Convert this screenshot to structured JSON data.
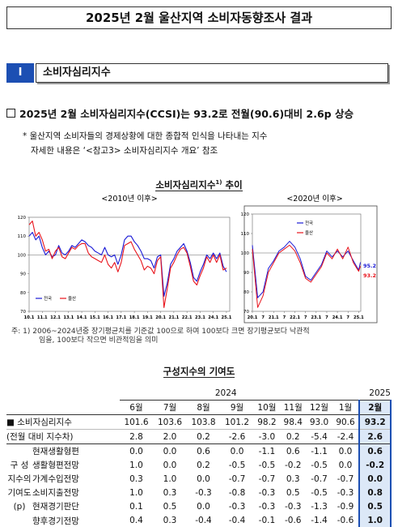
{
  "header": {
    "title": "2025년 2월 울산지역 소비자동향조사 결과"
  },
  "section": {
    "number": "I",
    "title": "소비자심리지수"
  },
  "headline": "2025년 2월 소비자심리지수(CCSI)는 93.2로 전월(90.6)대비 2.6p 상승",
  "notes": [
    "* 울산지역 소비자들의 경제상황에 대한 종합적 인식을 나타내는 지수",
    "자세한 내용은 ‘<참고3> 소비자심리지수 개요’ 참조"
  ],
  "figure": {
    "title": "소비자심리지수",
    "title_sup": "1)",
    "title_end": " 추이",
    "footnote": [
      "주: 1) 2006~2024년중 장기평균치를 기준값 100으로 하여 100보다 크면 장기평균보다 낙관적",
      "임을, 100보다 작으면 비관적임을 의미"
    ]
  },
  "chart_data": [
    {
      "type": "line",
      "subtitle": "<2010년 이후>",
      "legend": "lower left",
      "hline": 100,
      "x": [
        2010,
        2010.25,
        2010.5,
        2010.75,
        2011,
        2011.25,
        2011.5,
        2011.75,
        2012,
        2012.25,
        2012.5,
        2012.75,
        2013,
        2013.25,
        2013.5,
        2013.75,
        2014,
        2014.25,
        2014.5,
        2014.75,
        2015,
        2015.25,
        2015.5,
        2015.75,
        2016,
        2016.25,
        2016.5,
        2016.75,
        2017,
        2017.25,
        2017.5,
        2017.75,
        2018,
        2018.25,
        2018.5,
        2018.75,
        2019,
        2019.25,
        2019.5,
        2019.75,
        2020,
        2020.25,
        2020.5,
        2020.75,
        2021,
        2021.25,
        2021.5,
        2021.75,
        2022,
        2022.25,
        2022.5,
        2022.75,
        2023,
        2023.25,
        2023.5,
        2023.75,
        2024,
        2024.25,
        2024.5,
        2024.75,
        2025
      ],
      "xlim": [
        2010,
        2025.25
      ],
      "xticks": [
        {
          "value": 2010,
          "label": "10.1"
        },
        {
          "value": 2011,
          "label": "11.1"
        },
        {
          "value": 2012,
          "label": "12.1"
        },
        {
          "value": 2013,
          "label": "13.1"
        },
        {
          "value": 2014,
          "label": "14.1"
        },
        {
          "value": 2015,
          "label": "15.1"
        },
        {
          "value": 2016,
          "label": "16.1"
        },
        {
          "value": 2017,
          "label": "17.1"
        },
        {
          "value": 2018,
          "label": "18.1"
        },
        {
          "value": 2019,
          "label": "19.1"
        },
        {
          "value": 2020,
          "label": "20.1"
        },
        {
          "value": 2021,
          "label": "21.1"
        },
        {
          "value": 2022,
          "label": "22.1"
        },
        {
          "value": 2023,
          "label": "23.1"
        },
        {
          "value": 2024,
          "label": "24.1"
        },
        {
          "value": 2025,
          "label": "25.1"
        }
      ],
      "ylim": [
        70,
        120
      ],
      "yticks": [
        70,
        80,
        90,
        100,
        110,
        120
      ],
      "series": [
        {
          "name": "전국",
          "color": "#1a1ad6",
          "values": [
            110,
            112,
            108,
            110,
            104,
            100,
            102,
            99,
            100,
            105,
            101,
            100,
            102,
            105,
            104,
            106,
            108,
            107,
            105,
            104,
            102,
            101,
            100,
            104,
            100,
            99,
            100,
            95,
            100,
            108,
            110,
            110,
            107,
            105,
            102,
            98,
            98,
            97,
            93,
            99,
            100,
            78,
            85,
            95,
            98,
            102,
            104,
            106,
            102,
            96,
            88,
            86,
            91,
            95,
            100,
            98,
            101,
            98,
            101,
            94,
            91
          ]
        },
        {
          "name": "울산",
          "color": "#e8131b",
          "values": [
            116,
            118,
            110,
            112,
            108,
            102,
            103,
            98,
            102,
            104,
            99,
            98,
            101,
            104,
            103,
            105,
            106,
            106,
            101,
            99,
            98,
            97,
            96,
            100,
            95,
            93,
            96,
            91,
            96,
            105,
            106,
            107,
            103,
            100,
            97,
            92,
            94,
            93,
            90,
            97,
            99,
            72,
            82,
            93,
            96,
            100,
            103,
            104,
            101,
            94,
            86,
            84,
            89,
            93,
            99,
            96,
            100,
            96,
            100,
            92,
            93
          ]
        }
      ]
    },
    {
      "type": "line",
      "subtitle": "<2020년 이후>",
      "legend": "upper center",
      "hline": 100,
      "label_last": true,
      "x": [
        2020,
        2020.25,
        2020.5,
        2020.75,
        2021,
        2021.25,
        2021.5,
        2021.75,
        2022,
        2022.25,
        2022.5,
        2022.75,
        2023,
        2023.25,
        2023.5,
        2023.75,
        2024,
        2024.25,
        2024.5,
        2024.75,
        2025,
        2025.083
      ],
      "xlim": [
        2020,
        2025.1
      ],
      "xticks": [
        {
          "value": 2020,
          "label": "20.1"
        },
        {
          "value": 2020.5,
          "label": "7"
        },
        {
          "value": 2021,
          "label": "21.1"
        },
        {
          "value": 2021.5,
          "label": "7"
        },
        {
          "value": 2022,
          "label": "22.1"
        },
        {
          "value": 2022.5,
          "label": "7"
        },
        {
          "value": 2023,
          "label": "23.1"
        },
        {
          "value": 2023.5,
          "label": "7"
        },
        {
          "value": 2024,
          "label": "24.1"
        },
        {
          "value": 2024.5,
          "label": "7"
        },
        {
          "value": 2025,
          "label": "25.1"
        }
      ],
      "ylim": [
        70,
        120
      ],
      "yticks": [
        70,
        80,
        90,
        100,
        110,
        120
      ],
      "series": [
        {
          "name": "전국",
          "color": "#1a1ad6",
          "values": [
            104,
            77,
            80,
            92,
            96,
            101,
            103,
            106,
            103,
            97,
            88,
            86,
            90,
            94,
            101,
            98,
            101,
            98,
            101,
            96,
            91.2,
            95.2
          ]
        },
        {
          "name": "울산",
          "color": "#e8131b",
          "values": [
            102,
            72,
            78,
            90,
            95,
            100,
            102,
            104,
            101,
            95,
            87,
            85,
            89,
            93,
            100,
            97,
            102,
            97,
            103,
            95,
            90.6,
            93.2
          ]
        }
      ]
    }
  ],
  "table": {
    "title": "구성지수의 기여도",
    "years": [
      [
        "2024",
        7
      ],
      [
        "2025",
        2
      ]
    ],
    "months": [
      "6월",
      "7월",
      "8월",
      "9월",
      "10월",
      "11월",
      "12월",
      "1월",
      "2월"
    ],
    "main_rows": [
      {
        "label": "■ 소비자심리지수",
        "cells": [
          "101.6",
          "103.6",
          "103.8",
          "101.2",
          "98.2",
          "98.4",
          "93.0",
          "90.6",
          "93.2"
        ]
      },
      {
        "label": "(전월 대비 지수차)",
        "cells": [
          "2.8",
          "2.0",
          "0.2",
          "-2.6",
          "-3.0",
          "0.2",
          "-5.4",
          "-2.4",
          "2.6"
        ]
      }
    ],
    "group_label": [
      "구 성",
      "지수의",
      "기여도",
      "(p)"
    ],
    "group_rows": [
      {
        "label": "현재생활형편",
        "cells": [
          "0.0",
          "0.0",
          "0.6",
          "0.0",
          "-1.1",
          "0.6",
          "-1.1",
          "0.0",
          "0.6"
        ]
      },
      {
        "label": "생활형편전망",
        "cells": [
          "1.0",
          "0.0",
          "0.2",
          "-0.5",
          "-0.5",
          "-0.2",
          "-0.5",
          "0.0",
          "-0.2"
        ]
      },
      {
        "label": "가계수입전망",
        "cells": [
          "0.3",
          "1.0",
          "0.0",
          "-0.7",
          "-0.7",
          "0.3",
          "-0.7",
          "-0.7",
          "0.0"
        ]
      },
      {
        "label": "소비지출전망",
        "cells": [
          "1.0",
          "0.3",
          "-0.3",
          "-0.8",
          "-0.3",
          "0.5",
          "-0.5",
          "-0.3",
          "0.8"
        ]
      },
      {
        "label": "현재경기판단",
        "cells": [
          "0.1",
          "0.5",
          "0.0",
          "-0.3",
          "-0.3",
          "-0.3",
          "-1.3",
          "-0.9",
          "0.5"
        ]
      },
      {
        "label": "향후경기전망",
        "cells": [
          "0.4",
          "0.3",
          "-0.4",
          "-0.4",
          "-0.1",
          "-0.6",
          "-1.4",
          "-0.6",
          "1.0"
        ]
      }
    ]
  }
}
